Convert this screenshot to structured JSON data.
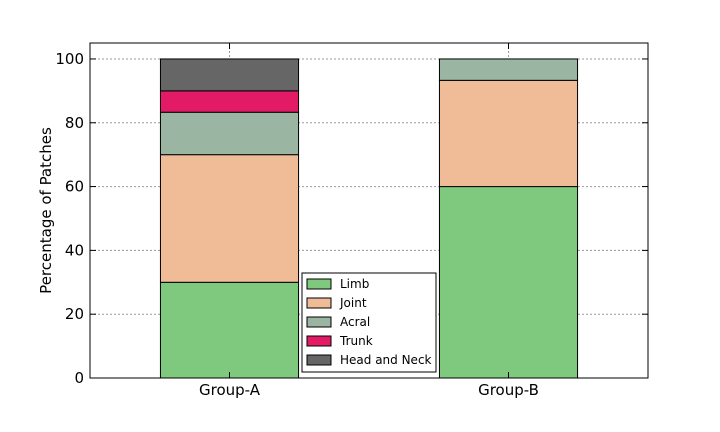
{
  "chart_data": {
    "type": "bar",
    "stacked": true,
    "categories": [
      "Group-A",
      "Group-B"
    ],
    "series": [
      {
        "name": "Limb",
        "color": "#7fc97f",
        "values": [
          30,
          60
        ]
      },
      {
        "name": "Joint",
        "color": "#f0bb97",
        "values": [
          40,
          33.3
        ]
      },
      {
        "name": "Acral",
        "color": "#9ab5a2",
        "values": [
          13.3,
          6.7
        ]
      },
      {
        "name": "Trunk",
        "color": "#e31a66",
        "values": [
          6.7,
          0
        ]
      },
      {
        "name": "Head and Neck",
        "color": "#666666",
        "values": [
          10,
          0
        ]
      }
    ],
    "title": "",
    "xlabel": "",
    "ylabel": "Percentage of Patches",
    "ylim": [
      0,
      105
    ],
    "yticks": [
      0,
      20,
      40,
      60,
      80,
      100
    ],
    "grid": true,
    "legend_position": "lower-center"
  }
}
